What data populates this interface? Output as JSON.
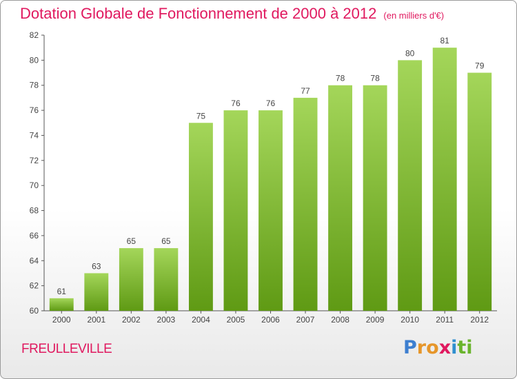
{
  "header": {
    "title": "Dotation Globale de Fonctionnement de 2000 à 2012",
    "subtitle": "(en milliers d'€)"
  },
  "footer": {
    "commune": "FREULLEVILLE",
    "logo_text": "Proxiti",
    "logo_letters": [
      "P",
      "r",
      "o",
      "x",
      "i",
      "t",
      "i"
    ],
    "logo_colors": [
      "#3d7fd0",
      "#e6962a",
      "#e6962a",
      "#e0195f",
      "#2f8fcf",
      "#6ab42d",
      "#6ab42d"
    ]
  },
  "colors": {
    "bar_top": "#a4d65a",
    "bar_bottom": "#5f9a14",
    "axis": "#555555",
    "grid": "#dddddd",
    "accent": "#e0195f"
  },
  "chart_data": {
    "type": "bar",
    "title": "Dotation Globale de Fonctionnement de 2000 à 2012",
    "subtitle": "(en milliers d'€)",
    "xlabel": "",
    "ylabel": "",
    "categories": [
      "2000",
      "2001",
      "2002",
      "2003",
      "2004",
      "2005",
      "2006",
      "2007",
      "2008",
      "2009",
      "2010",
      "2011",
      "2012"
    ],
    "values": [
      61,
      63,
      65,
      65,
      75,
      76,
      76,
      77,
      78,
      78,
      80,
      81,
      79
    ],
    "ylim": [
      60,
      82
    ],
    "yticks": [
      60,
      62,
      64,
      66,
      68,
      70,
      72,
      74,
      76,
      78,
      80,
      82
    ],
    "grid": false,
    "data_labels": true
  }
}
